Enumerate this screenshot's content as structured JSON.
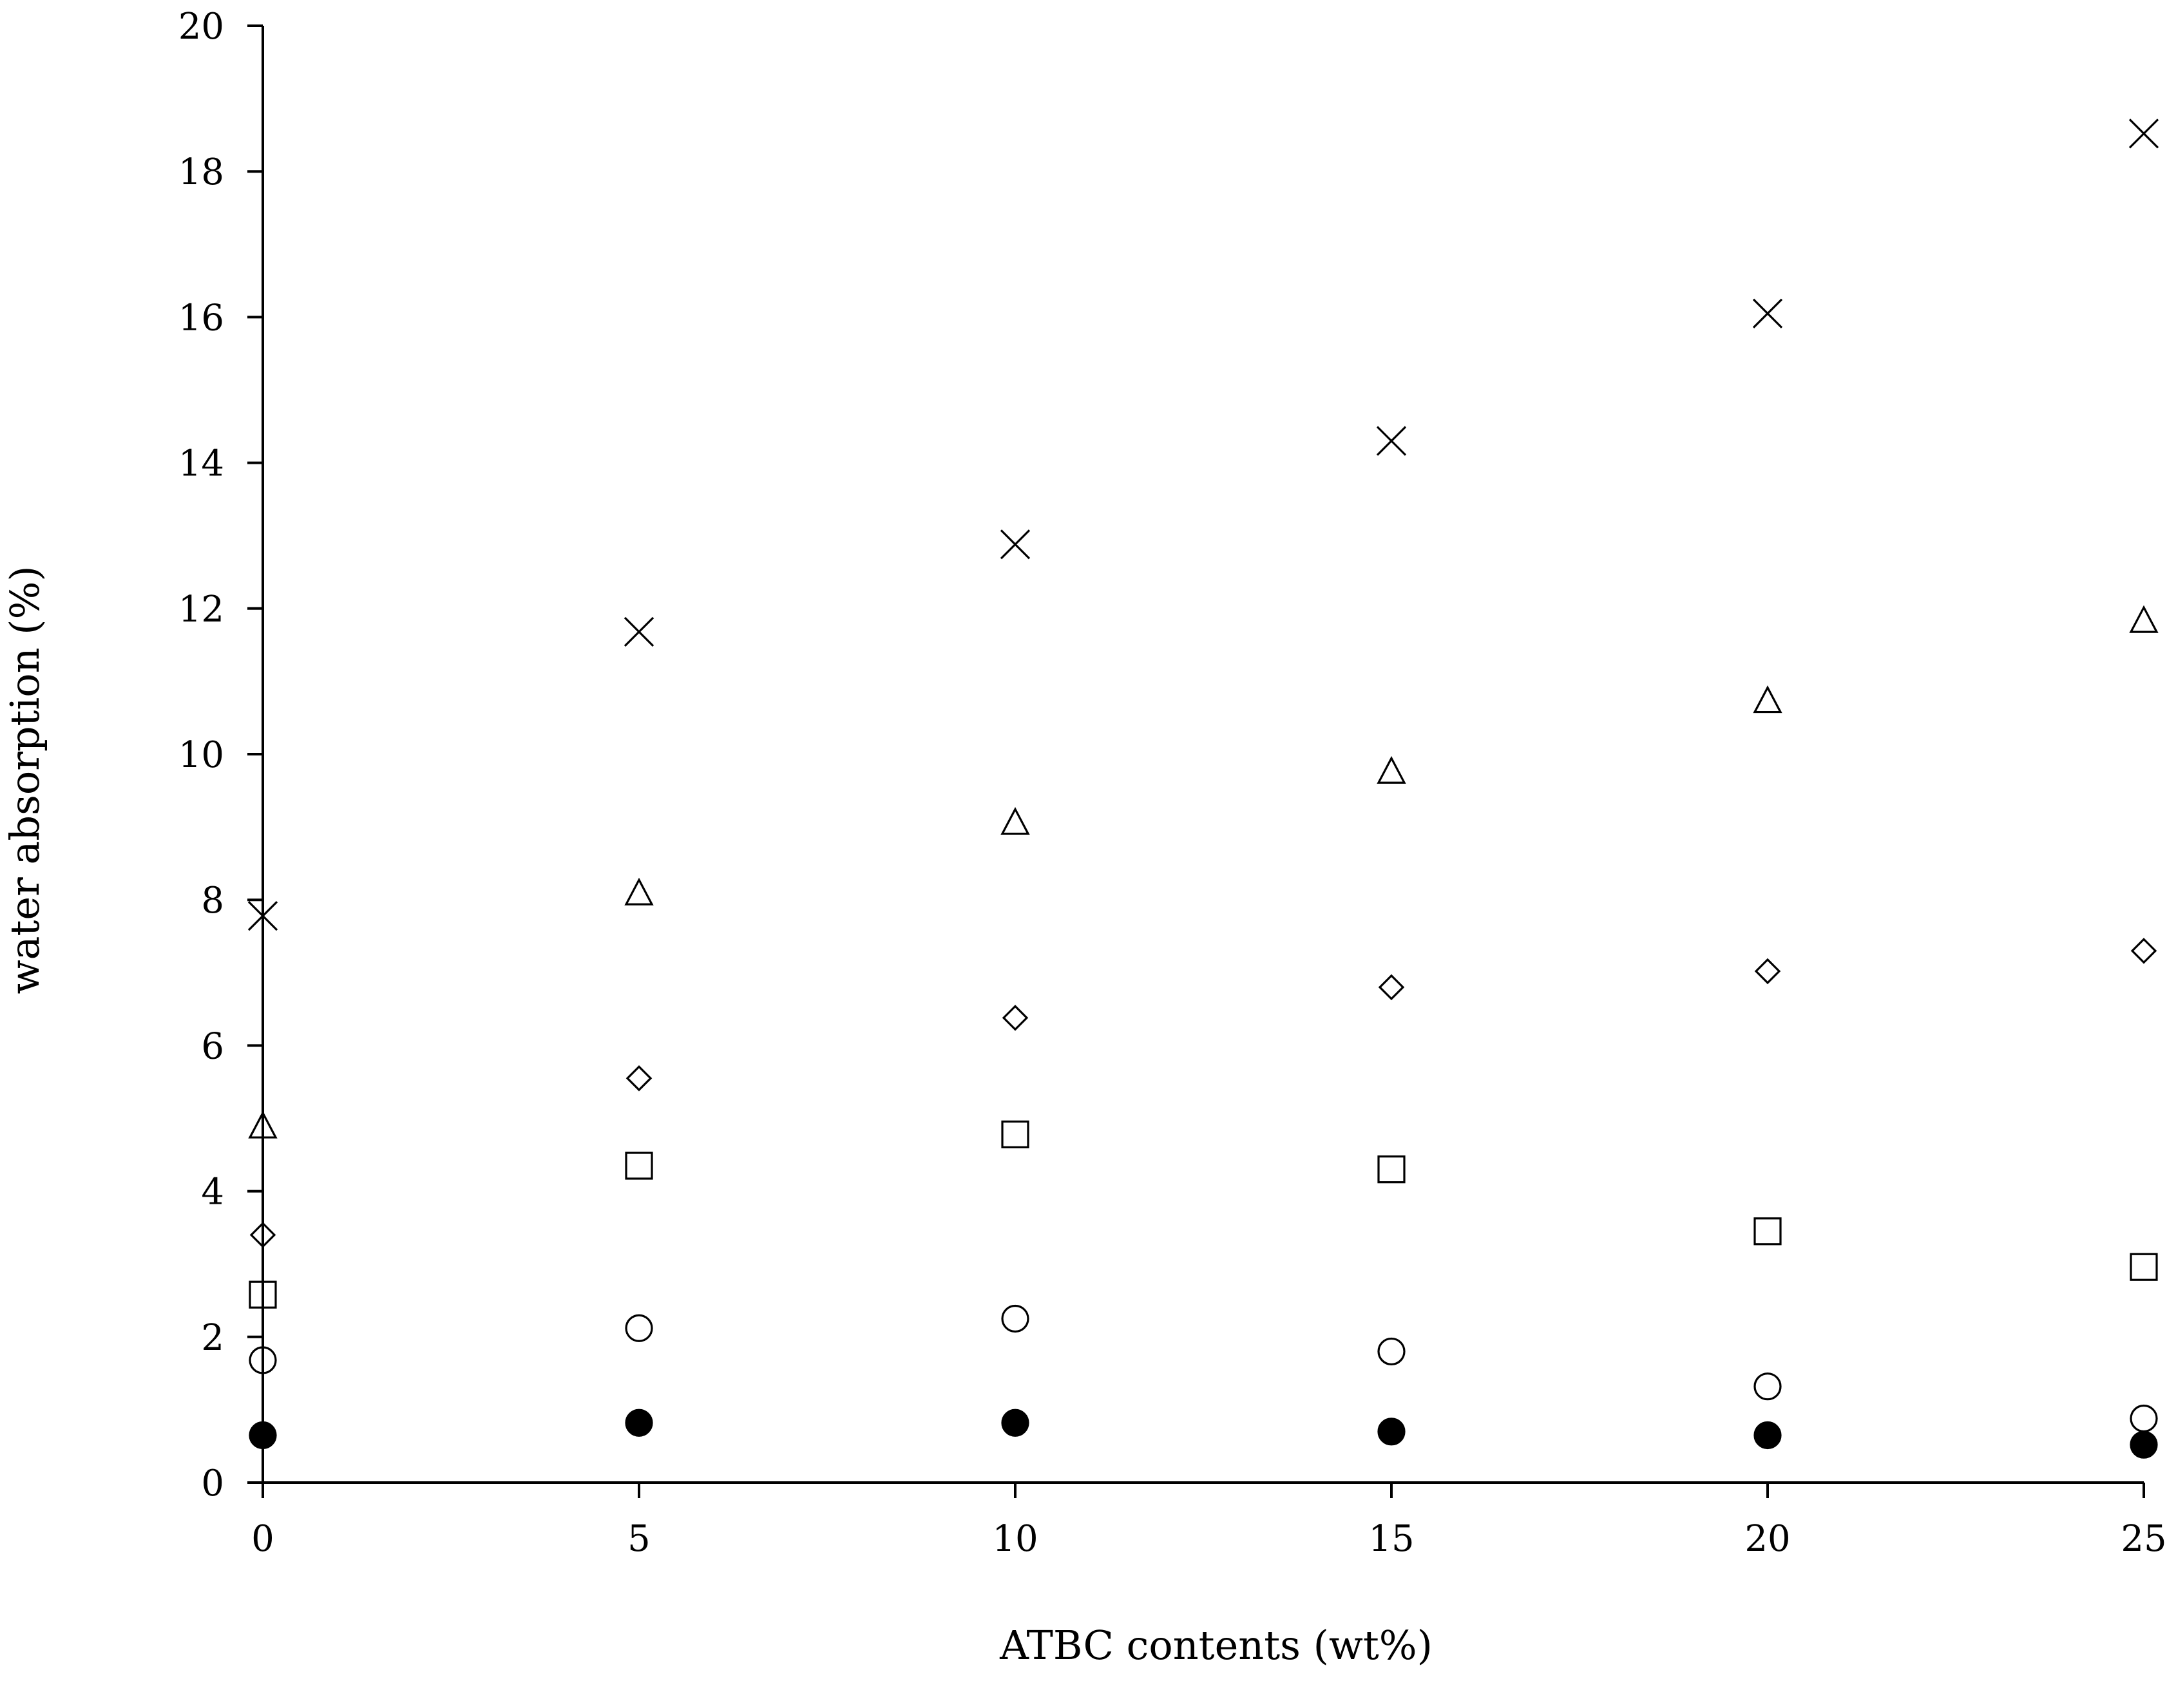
{
  "chart_data": {
    "type": "scatter",
    "title": "",
    "xlabel": "ATBC contents (wt%)",
    "ylabel": "water absorption (%)",
    "xlim": [
      0,
      25
    ],
    "ylim": [
      0,
      20
    ],
    "x_ticks": [
      0,
      5,
      10,
      15,
      20,
      25
    ],
    "y_ticks": [
      0,
      2,
      4,
      6,
      8,
      10,
      12,
      14,
      16,
      18,
      20
    ],
    "grid": false,
    "legend": "none",
    "x": [
      0,
      5,
      10,
      15,
      20,
      25
    ],
    "series": [
      {
        "marker": "filled-circle",
        "color": "#000000",
        "values": [
          0.65,
          0.82,
          0.82,
          0.7,
          0.65,
          0.52
        ]
      },
      {
        "marker": "open-circle",
        "color": "#000000",
        "values": [
          1.68,
          2.12,
          2.25,
          1.8,
          1.32,
          0.88
        ]
      },
      {
        "marker": "open-square",
        "color": "#000000",
        "values": [
          2.58,
          4.35,
          4.78,
          4.3,
          3.45,
          2.96
        ]
      },
      {
        "marker": "open-diamond",
        "color": "#000000",
        "values": [
          3.4,
          5.55,
          6.38,
          6.8,
          7.02,
          7.3
        ]
      },
      {
        "marker": "open-triangle",
        "color": "#000000",
        "values": [
          4.88,
          8.08,
          9.05,
          9.75,
          10.72,
          11.82
        ]
      },
      {
        "marker": "cross",
        "color": "#000000",
        "values": [
          7.78,
          11.68,
          12.88,
          14.3,
          16.05,
          18.52
        ]
      }
    ]
  }
}
